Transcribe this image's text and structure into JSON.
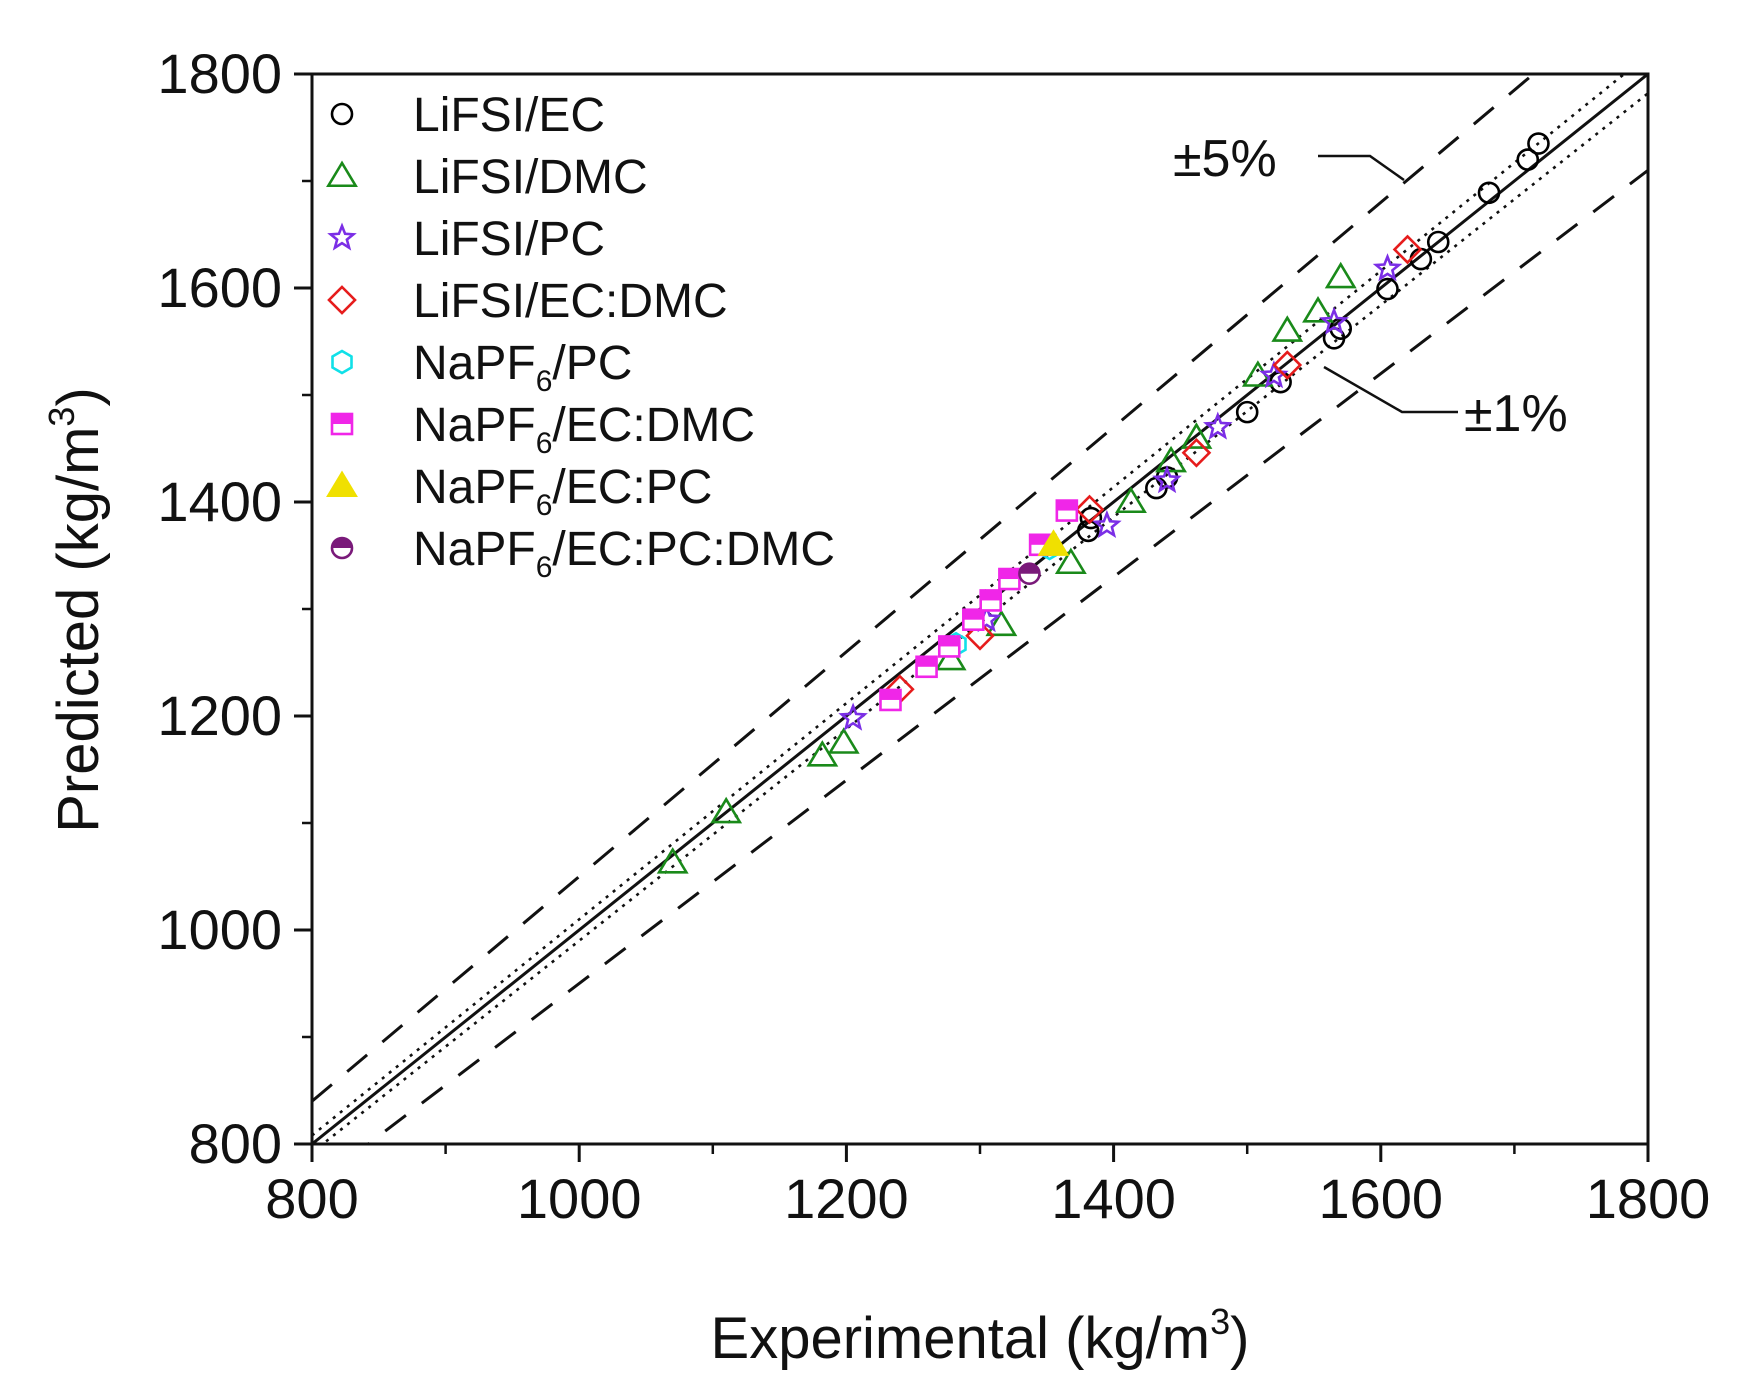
{
  "chart_data": {
    "type": "scatter",
    "xlabel": "Experimental (kg/m",
    "xlabel_sup": "3",
    "xlabel_end": ")",
    "ylabel": "Predicted (kg/m",
    "ylabel_sup": "3",
    "ylabel_end": ")",
    "xlim": [
      800,
      1800
    ],
    "ylim": [
      800,
      1800
    ],
    "x_ticks": [
      "800",
      "1000",
      "1200",
      "1400",
      "1600",
      "1800"
    ],
    "y_ticks": [
      "800",
      "1000",
      "1200",
      "1400",
      "1600",
      "1800"
    ],
    "legend_position": "top-left",
    "grid": false,
    "annotations": {
      "band5": "±5%",
      "band1": "±1%"
    },
    "reference_lines": {
      "identity": "y = x",
      "dotted_band_pct": 1,
      "dashed_band_pct": 5
    },
    "series": [
      {
        "name": "LiFSI/EC",
        "legend_main": "LiFSI/EC",
        "legend_sub": "",
        "legend_rest": "",
        "marker": "circle-open",
        "color": "#000000",
        "points": [
          [
            1381,
            1373
          ],
          [
            1383,
            1385
          ],
          [
            1432,
            1413
          ],
          [
            1440,
            1423
          ],
          [
            1500,
            1484
          ],
          [
            1525,
            1512
          ],
          [
            1565,
            1553
          ],
          [
            1570,
            1562
          ],
          [
            1605,
            1599
          ],
          [
            1630,
            1627
          ],
          [
            1643,
            1643
          ],
          [
            1681,
            1689
          ],
          [
            1710,
            1720
          ],
          [
            1718,
            1735
          ]
        ]
      },
      {
        "name": "LiFSI/DMC",
        "legend_main": "LiFSI/DMC",
        "legend_sub": "",
        "legend_rest": "",
        "marker": "triangle-open",
        "color": "#1a8a1a",
        "points": [
          [
            1070,
            1063
          ],
          [
            1110,
            1110
          ],
          [
            1182,
            1163
          ],
          [
            1198,
            1175
          ],
          [
            1278,
            1253
          ],
          [
            1316,
            1285
          ],
          [
            1368,
            1343
          ],
          [
            1413,
            1400
          ],
          [
            1443,
            1438
          ],
          [
            1462,
            1460
          ],
          [
            1508,
            1518
          ],
          [
            1530,
            1560
          ],
          [
            1553,
            1578
          ],
          [
            1570,
            1610
          ]
        ]
      },
      {
        "name": "LiFSI/PC",
        "legend_main": "LiFSI/PC",
        "legend_sub": "",
        "legend_rest": "",
        "marker": "star-open",
        "color": "#7b2ee6",
        "points": [
          [
            1205,
            1198
          ],
          [
            1305,
            1290
          ],
          [
            1395,
            1378
          ],
          [
            1440,
            1420
          ],
          [
            1478,
            1470
          ],
          [
            1520,
            1518
          ],
          [
            1565,
            1568
          ],
          [
            1605,
            1618
          ]
        ]
      },
      {
        "name": "LiFSI/EC:DMC",
        "legend_main": "LiFSI/EC:DMC",
        "legend_sub": "",
        "legend_rest": "",
        "marker": "diamond-open",
        "color": "#e61c1c",
        "points": [
          [
            1240,
            1225
          ],
          [
            1300,
            1275
          ],
          [
            1382,
            1393
          ],
          [
            1462,
            1446
          ],
          [
            1530,
            1528
          ],
          [
            1620,
            1636
          ]
        ]
      },
      {
        "name": "NaPF6/PC",
        "legend_main": "NaPF",
        "legend_sub": "6",
        "legend_rest": "/PC",
        "marker": "hexagon-open",
        "color": "#10e0e8",
        "points": [
          [
            1282,
            1267
          ],
          [
            1352,
            1357
          ]
        ]
      },
      {
        "name": "NaPF6/EC:DMC",
        "legend_main": "NaPF",
        "legend_sub": "6",
        "legend_rest": "/EC:DMC",
        "marker": "square-half",
        "color": "#f026e8",
        "points": [
          [
            1233,
            1215
          ],
          [
            1260,
            1246
          ],
          [
            1277,
            1265
          ],
          [
            1295,
            1290
          ],
          [
            1308,
            1308
          ],
          [
            1322,
            1328
          ],
          [
            1345,
            1360
          ],
          [
            1365,
            1392
          ]
        ]
      },
      {
        "name": "NaPF6/EC:PC",
        "legend_main": "NaPF",
        "legend_sub": "6",
        "legend_rest": "/EC:PC",
        "marker": "triangle-filled",
        "color": "#f0e000",
        "points": [
          [
            1355,
            1360
          ]
        ]
      },
      {
        "name": "NaPF6/EC:PC:DMC",
        "legend_main": "NaPF",
        "legend_sub": "6",
        "legend_rest": "/EC:PC:DMC",
        "marker": "circle-half",
        "color": "#7a1a7a",
        "points": [
          [
            1337,
            1333
          ]
        ]
      }
    ]
  }
}
